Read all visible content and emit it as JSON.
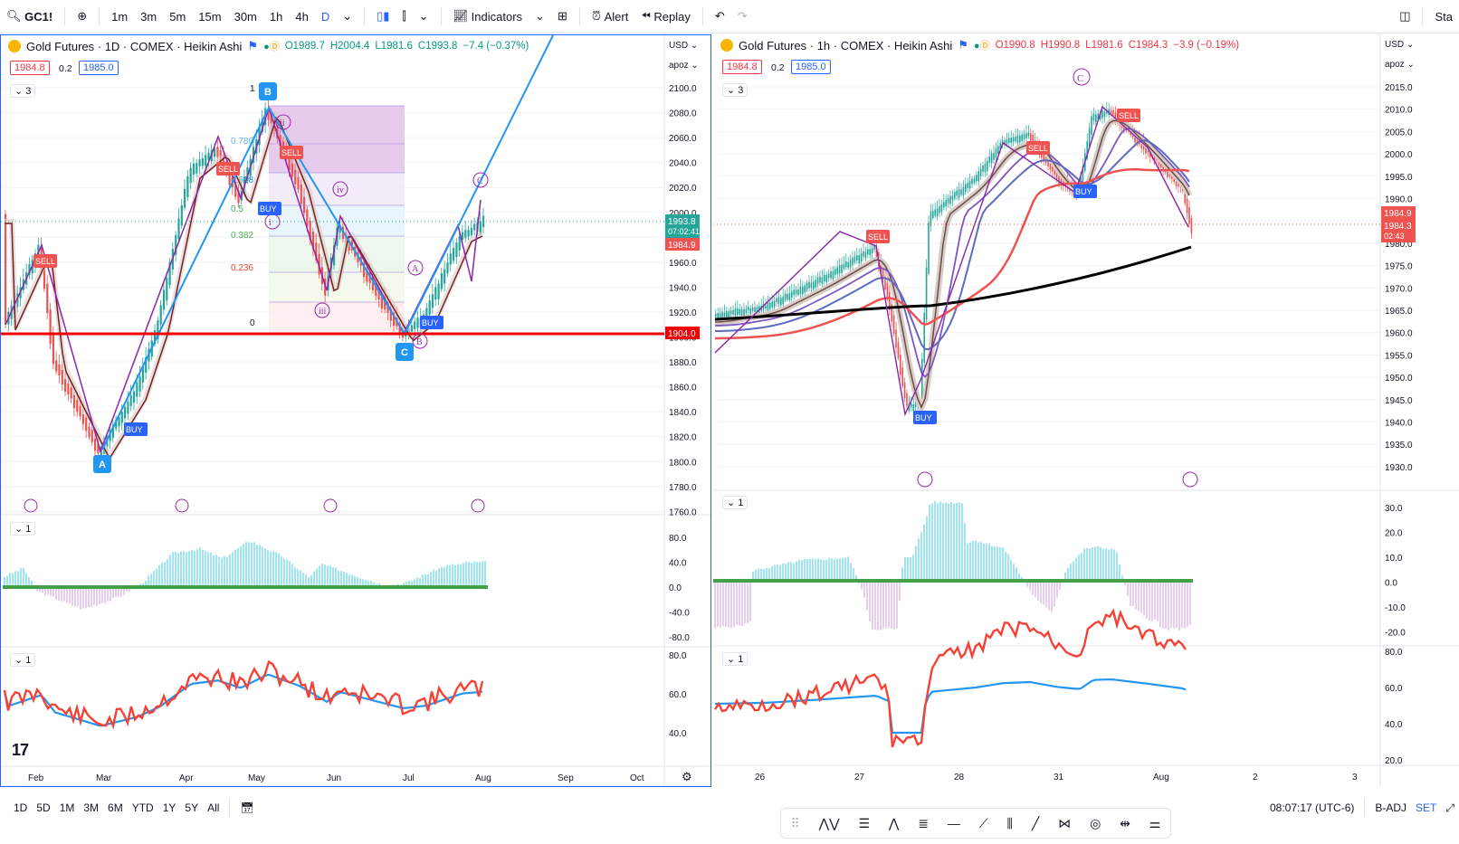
{
  "topbar": {
    "symbol": "GC1!",
    "intervals": [
      "1m",
      "3m",
      "5m",
      "15m",
      "30m",
      "1h",
      "4h",
      "D"
    ],
    "selected_interval": "D",
    "indicators_label": "Indicators",
    "alert_label": "Alert",
    "replay_label": "Replay",
    "right_cut": "Sta"
  },
  "left_chart": {
    "title": "Gold Futures · 1D · COMEX · Heikin Ashi",
    "ohlc": {
      "o": "O1989.7",
      "h": "H2004.4",
      "l": "L1981.6",
      "c": "C1993.8",
      "chg": "−7.4 (−0.37%)"
    },
    "bid": "1984.8",
    "spread": "0.2",
    "ask": "1985.0",
    "currency": "USD",
    "scale_mode": "apoz",
    "collapse_main": "3",
    "collapse_sub1": "1",
    "collapse_sub2": "1",
    "price_ticks": [
      "2100.0",
      "2080.0",
      "2060.0",
      "2040.0",
      "2020.0",
      "2000.0",
      "1980.0",
      "1960.0",
      "1940.0",
      "1920.0",
      "1900.0",
      "1880.0",
      "1860.0",
      "1840.0",
      "1820.0",
      "1800.0",
      "1780.0",
      "1760.0"
    ],
    "tags": {
      "last": "1993.8",
      "timer": "07:02:41",
      "red": "1984.9",
      "level": "1904.0"
    },
    "fib_labels": [
      "1",
      "0.786",
      "0.618",
      "0.5",
      "0.382",
      "0.236",
      "0"
    ],
    "wave_labels": [
      "ii",
      "iv",
      "i",
      "iii",
      "A",
      "B",
      "C"
    ],
    "pattern_labels": [
      "A",
      "B",
      "C"
    ],
    "signal_labels": {
      "sell1": "SELL",
      "sell2": "SELL",
      "sell3": "SELL",
      "buy1": "BUY",
      "buy2": "BUY",
      "buy3": "BUY"
    },
    "osc1_ticks": [
      "80.0",
      "40.0",
      "0.0",
      "-40.0",
      "-80.0"
    ],
    "osc2_ticks": [
      "80.0",
      "60.0",
      "40.0"
    ],
    "time_labels": [
      "Feb",
      "Mar",
      "Apr",
      "May",
      "Jun",
      "Jul",
      "Aug",
      "Sep",
      "Oct"
    ]
  },
  "right_chart": {
    "title": "Gold Futures · 1h · COMEX · Heikin Ashi",
    "ohlc": {
      "o": "O1990.8",
      "h": "H1990.8",
      "l": "L1981.6",
      "c": "C1984.3",
      "chg": "−3.9 (−0.19%)"
    },
    "bid": "1984.8",
    "spread": "0.2",
    "ask": "1985.0",
    "currency": "USD",
    "scale_mode": "apoz",
    "collapse_main": "3",
    "collapse_sub1": "1",
    "collapse_sub2": "1",
    "price_ticks": [
      "2015.0",
      "2010.0",
      "2005.0",
      "2000.0",
      "1995.0",
      "1990.0",
      "1985.0",
      "1980.0",
      "1975.0",
      "1970.0",
      "1965.0",
      "1960.0",
      "1955.0",
      "1950.0",
      "1945.0",
      "1940.0",
      "1935.0",
      "1930.0"
    ],
    "tags": {
      "red1": "1984.9",
      "red2": "1984.3",
      "timer": "02:43"
    },
    "wave_label": "C",
    "signal_labels": {
      "sell1": "SELL",
      "sell2": "SELL",
      "sell3": "SELL",
      "buy1": "BUY",
      "buy2": "BUY"
    },
    "osc1_ticks": [
      "30.0",
      "20.0",
      "10.0",
      "0.0",
      "-10.0",
      "-20.0"
    ],
    "osc2_ticks": [
      "80.0",
      "60.0",
      "40.0",
      "20.0"
    ],
    "time_labels": [
      "26",
      "27",
      "28",
      "31",
      "Aug",
      "2",
      "3"
    ]
  },
  "bottombar": {
    "ranges": [
      "1D",
      "5D",
      "1M",
      "3M",
      "6M",
      "YTD",
      "1Y",
      "5Y",
      "All"
    ],
    "clock": "08:07:17 (UTC-6)",
    "badj": "B-ADJ",
    "set": "SET"
  },
  "colors": {
    "up": "#26a69a",
    "down": "#ef5350",
    "accent": "#2962ff",
    "fib_blue": "#2196f3",
    "wave": "#9c27b0"
  }
}
